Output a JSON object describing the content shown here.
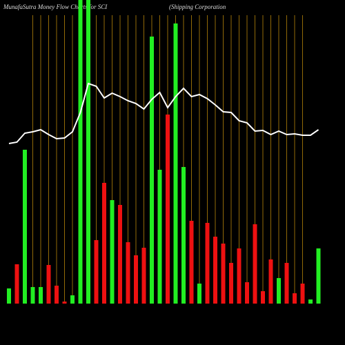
{
  "chart_data": {
    "type": "bar",
    "title": "MunafaSutra  Money Flow  Charts for SCI",
    "subtitle": "(Shipping Corporation",
    "values": [
      22,
      57,
      223,
      24,
      24,
      56,
      26,
      3,
      12,
      460,
      460,
      92,
      175,
      150,
      143,
      89,
      70,
      81,
      387,
      194,
      274,
      406,
      198,
      120,
      29,
      117,
      97,
      87,
      59,
      80,
      31,
      115,
      18,
      64,
      37,
      59,
      15,
      29,
      6,
      80
    ],
    "colors": [
      "#22ee22",
      "#ee1111",
      "#22ee22",
      "#22ee22",
      "#22ee22",
      "#ee1111",
      "#ee1111",
      "#ee1111",
      "#22ee22",
      "#22ee22",
      "#22ee22",
      "#ee1111",
      "#ee1111",
      "#22ee22",
      "#ee1111",
      "#ee1111",
      "#ee1111",
      "#ee1111",
      "#22ee22",
      "#22ee22",
      "#ee1111",
      "#22ee22",
      "#22ee22",
      "#ee1111",
      "#22ee22",
      "#ee1111",
      "#ee1111",
      "#ee1111",
      "#ee1111",
      "#ee1111",
      "#ee1111",
      "#ee1111",
      "#ee1111",
      "#ee1111",
      "#22ee22",
      "#ee1111",
      "#ee1111",
      "#ee1111",
      "#22ee22",
      "#22ee22"
    ],
    "line_values": [
      232,
      234,
      247,
      249,
      252,
      245,
      239,
      240,
      249,
      277,
      319,
      315,
      298,
      305,
      300,
      294,
      290,
      282,
      296,
      306,
      284,
      300,
      312,
      300,
      303,
      297,
      288,
      278,
      277,
      265,
      262,
      250,
      251,
      245,
      250,
      245,
      246,
      244,
      244,
      252
    ],
    "line_color": "#ffffff",
    "ylim": [
      0,
      440
    ],
    "grid": true,
    "grid_color": "#b8860b"
  }
}
